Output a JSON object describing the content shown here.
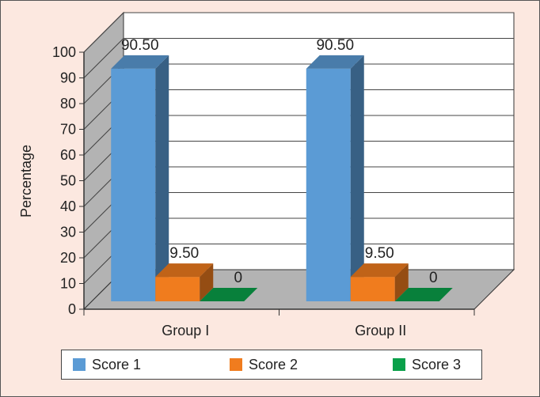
{
  "chart_data": {
    "type": "bar",
    "categories": [
      "Group I",
      "Group II"
    ],
    "series": [
      {
        "name": "Score 1",
        "values": [
          90.5,
          90.5
        ],
        "labels": [
          "90.50",
          "90.50"
        ],
        "color": "#5b9bd5"
      },
      {
        "name": "Score 2",
        "values": [
          9.5,
          9.5
        ],
        "labels": [
          "9.50",
          "9.50"
        ],
        "color": "#f07c1e"
      },
      {
        "name": "Score 3",
        "values": [
          0,
          0
        ],
        "labels": [
          "0",
          "0"
        ],
        "color": "#0aa04a"
      }
    ],
    "title": "",
    "xlabel": "",
    "ylabel": "Percentage",
    "ylim": [
      0,
      100
    ],
    "yticks": [
      "0",
      "10",
      "20",
      "30",
      "40",
      "50",
      "60",
      "70",
      "80",
      "90",
      "100"
    ],
    "grid": true,
    "legend_position": "bottom",
    "three_d": true
  }
}
